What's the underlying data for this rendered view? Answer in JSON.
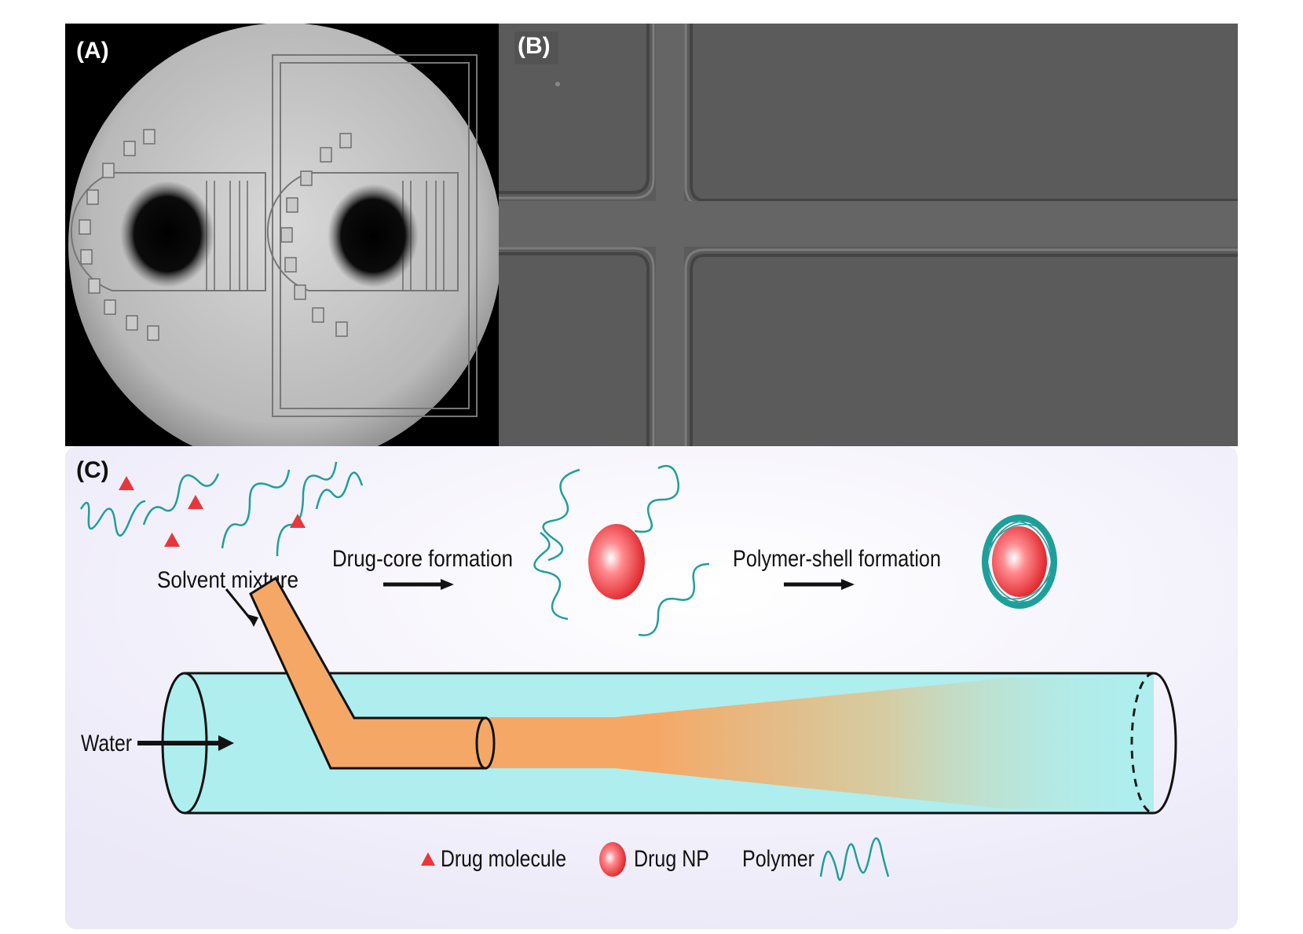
{
  "panels": {
    "a": {
      "label": "(A)"
    },
    "b": {
      "label": "(B)"
    },
    "c": {
      "label": "(C)"
    }
  },
  "diagram": {
    "solvent_label": "Solvent mixture",
    "step1_label": "Drug-core formation",
    "step2_label": "Polymer-shell formation",
    "water_label": "Water"
  },
  "legend": {
    "drug_molecule": "Drug molecule",
    "drug_np": "Drug NP",
    "polymer": "Polymer"
  },
  "colors": {
    "tube": "#aeeeee",
    "solvent_stream": "#f5a866",
    "drug": "#e8363b",
    "polymer": "#1f9f9a",
    "panel_c_background": "#f3f1fb"
  }
}
